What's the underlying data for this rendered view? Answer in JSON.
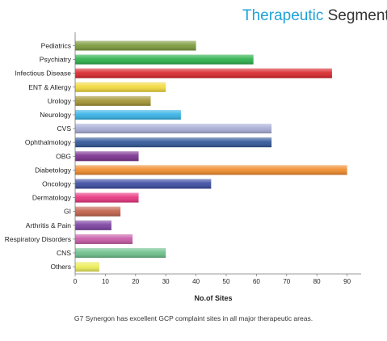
{
  "chart_data": {
    "type": "bar",
    "orientation": "horizontal",
    "title": {
      "part1": "Therapeutic",
      "part2": "Segments"
    },
    "xlabel": "No.of Sites",
    "ylabel": "",
    "xlim": [
      0,
      95
    ],
    "xticks": [
      0,
      10,
      20,
      30,
      40,
      50,
      60,
      70,
      80,
      90
    ],
    "grid": false,
    "categories": [
      "Pediatrics",
      "Psychiatry",
      "Infectious Disease",
      "ENT & Allergy",
      "Urology",
      "Neurology",
      "CVS",
      "Ophthalmology",
      "OBG",
      "Diabetology",
      "Oncology",
      "Dermatology",
      "GI",
      "Arthritis & Pain",
      "Respiratory Disorders",
      "CNS",
      "Others"
    ],
    "values": [
      40,
      59,
      85,
      30,
      25,
      35,
      65,
      65,
      21,
      90,
      45,
      21,
      15,
      12,
      19,
      30,
      8
    ],
    "colors": [
      "#7a9a3a",
      "#2bb04a",
      "#d8252a",
      "#f2d93a",
      "#a39432",
      "#36b3e6",
      "#a8acd6",
      "#2f5597",
      "#7a2f8f",
      "#f08a2a",
      "#3a4aa0",
      "#e8347e",
      "#c2614a",
      "#7b3fa0",
      "#c85aa8",
      "#6cbf8a",
      "#eded58"
    ]
  },
  "caption": "G7 Synergon has excellent GCP complaint sites in all major therapeutic areas."
}
